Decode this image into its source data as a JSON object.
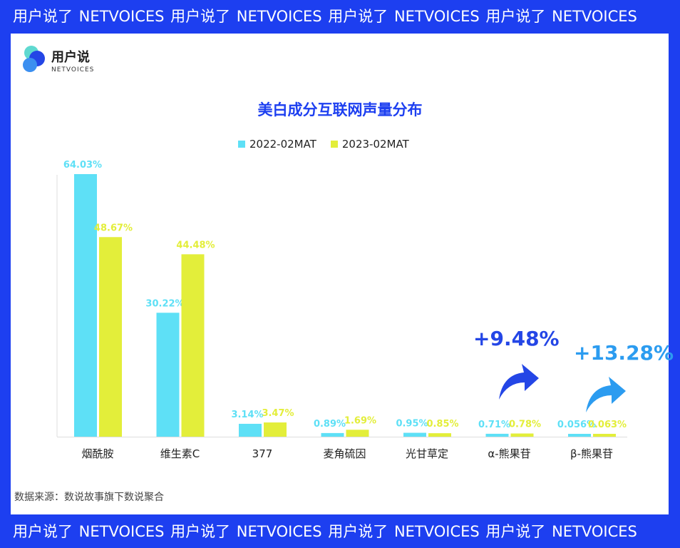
{
  "banner": {
    "text": "用户说了 NETVOICES 用户说了 NETVOICES 用户说了 NETVOICES 用户说了 NETVOICES"
  },
  "logo": {
    "cn": "用户说",
    "en": "NETVOICES"
  },
  "colors": {
    "series1": "#5ee0f6",
    "series2": "#e3ee3a",
    "accent": "#1d3ff0",
    "accent2": "#2c9cf0"
  },
  "chart_data": {
    "type": "bar",
    "title": "美白成分互联网声量分布",
    "categories": [
      "烟酰胺",
      "维生素C",
      "377",
      "麦角硫因",
      "光甘草定",
      "α-熊果苷",
      "β-熊果苷"
    ],
    "series": [
      {
        "name": "2022-02MAT",
        "values": [
          64.03,
          30.22,
          3.14,
          0.89,
          0.95,
          0.71,
          0.056
        ],
        "labels": [
          "64.03%",
          "30.22%",
          "3.14%",
          "0.89%",
          "0.95%",
          "0.71%",
          "0.056%"
        ]
      },
      {
        "name": "2023-02MAT",
        "values": [
          48.67,
          44.48,
          3.47,
          1.69,
          0.85,
          0.78,
          0.063
        ],
        "labels": [
          "48.67%",
          "44.48%",
          "3.47%",
          "1.69%",
          "0.85%",
          "0.78%",
          "0.063%"
        ]
      }
    ],
    "annotations": [
      {
        "category": "α-熊果苷",
        "text": "+9.48%"
      },
      {
        "category": "β-熊果苷",
        "text": "+13.28%"
      }
    ],
    "ylim": [
      0,
      64.03
    ],
    "grid": false,
    "legend": "top"
  },
  "source": "数据来源：数说故事旗下数说聚合"
}
